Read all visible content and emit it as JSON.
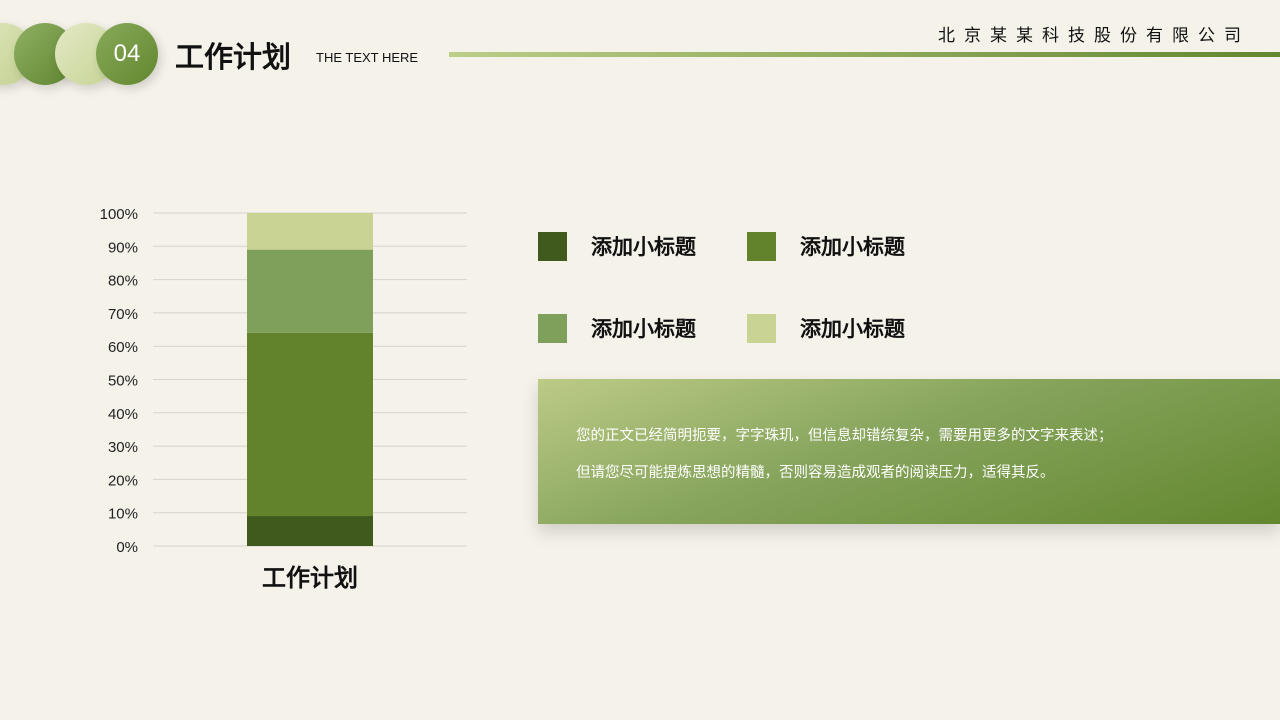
{
  "header": {
    "number": "04",
    "title": "工作计划",
    "subtitle": "THE TEXT HERE",
    "company": "北京某某科技股份有限公司"
  },
  "chart_data": {
    "type": "bar",
    "stacked": true,
    "categories": [
      "工作计划"
    ],
    "series": [
      {
        "values": [
          9
        ],
        "color": "#3f5a1c"
      },
      {
        "values": [
          55
        ],
        "color": "#62832c"
      },
      {
        "values": [
          25
        ],
        "color": "#7fa05a"
      },
      {
        "values": [
          11
        ],
        "color": "#c9d494"
      }
    ],
    "yticks": [
      "0%",
      "10%",
      "20%",
      "30%",
      "40%",
      "50%",
      "60%",
      "70%",
      "80%",
      "90%",
      "100%"
    ],
    "ylim": [
      0,
      100
    ],
    "grid": true
  },
  "legend": [
    {
      "label": "添加小标题",
      "color": "#3f5a1c"
    },
    {
      "label": "添加小标题",
      "color": "#62832c"
    },
    {
      "label": "添加小标题",
      "color": "#7fa05a"
    },
    {
      "label": "添加小标题",
      "color": "#c9d494"
    }
  ],
  "body": {
    "line1": "您的正文已经简明扼要，字字珠玑，但信息却错综复杂，需要用更多的文字来表述；",
    "line2": "但请您尽可能提炼思想的精髓，否则容易造成观者的阅读压力，适得其反。"
  }
}
